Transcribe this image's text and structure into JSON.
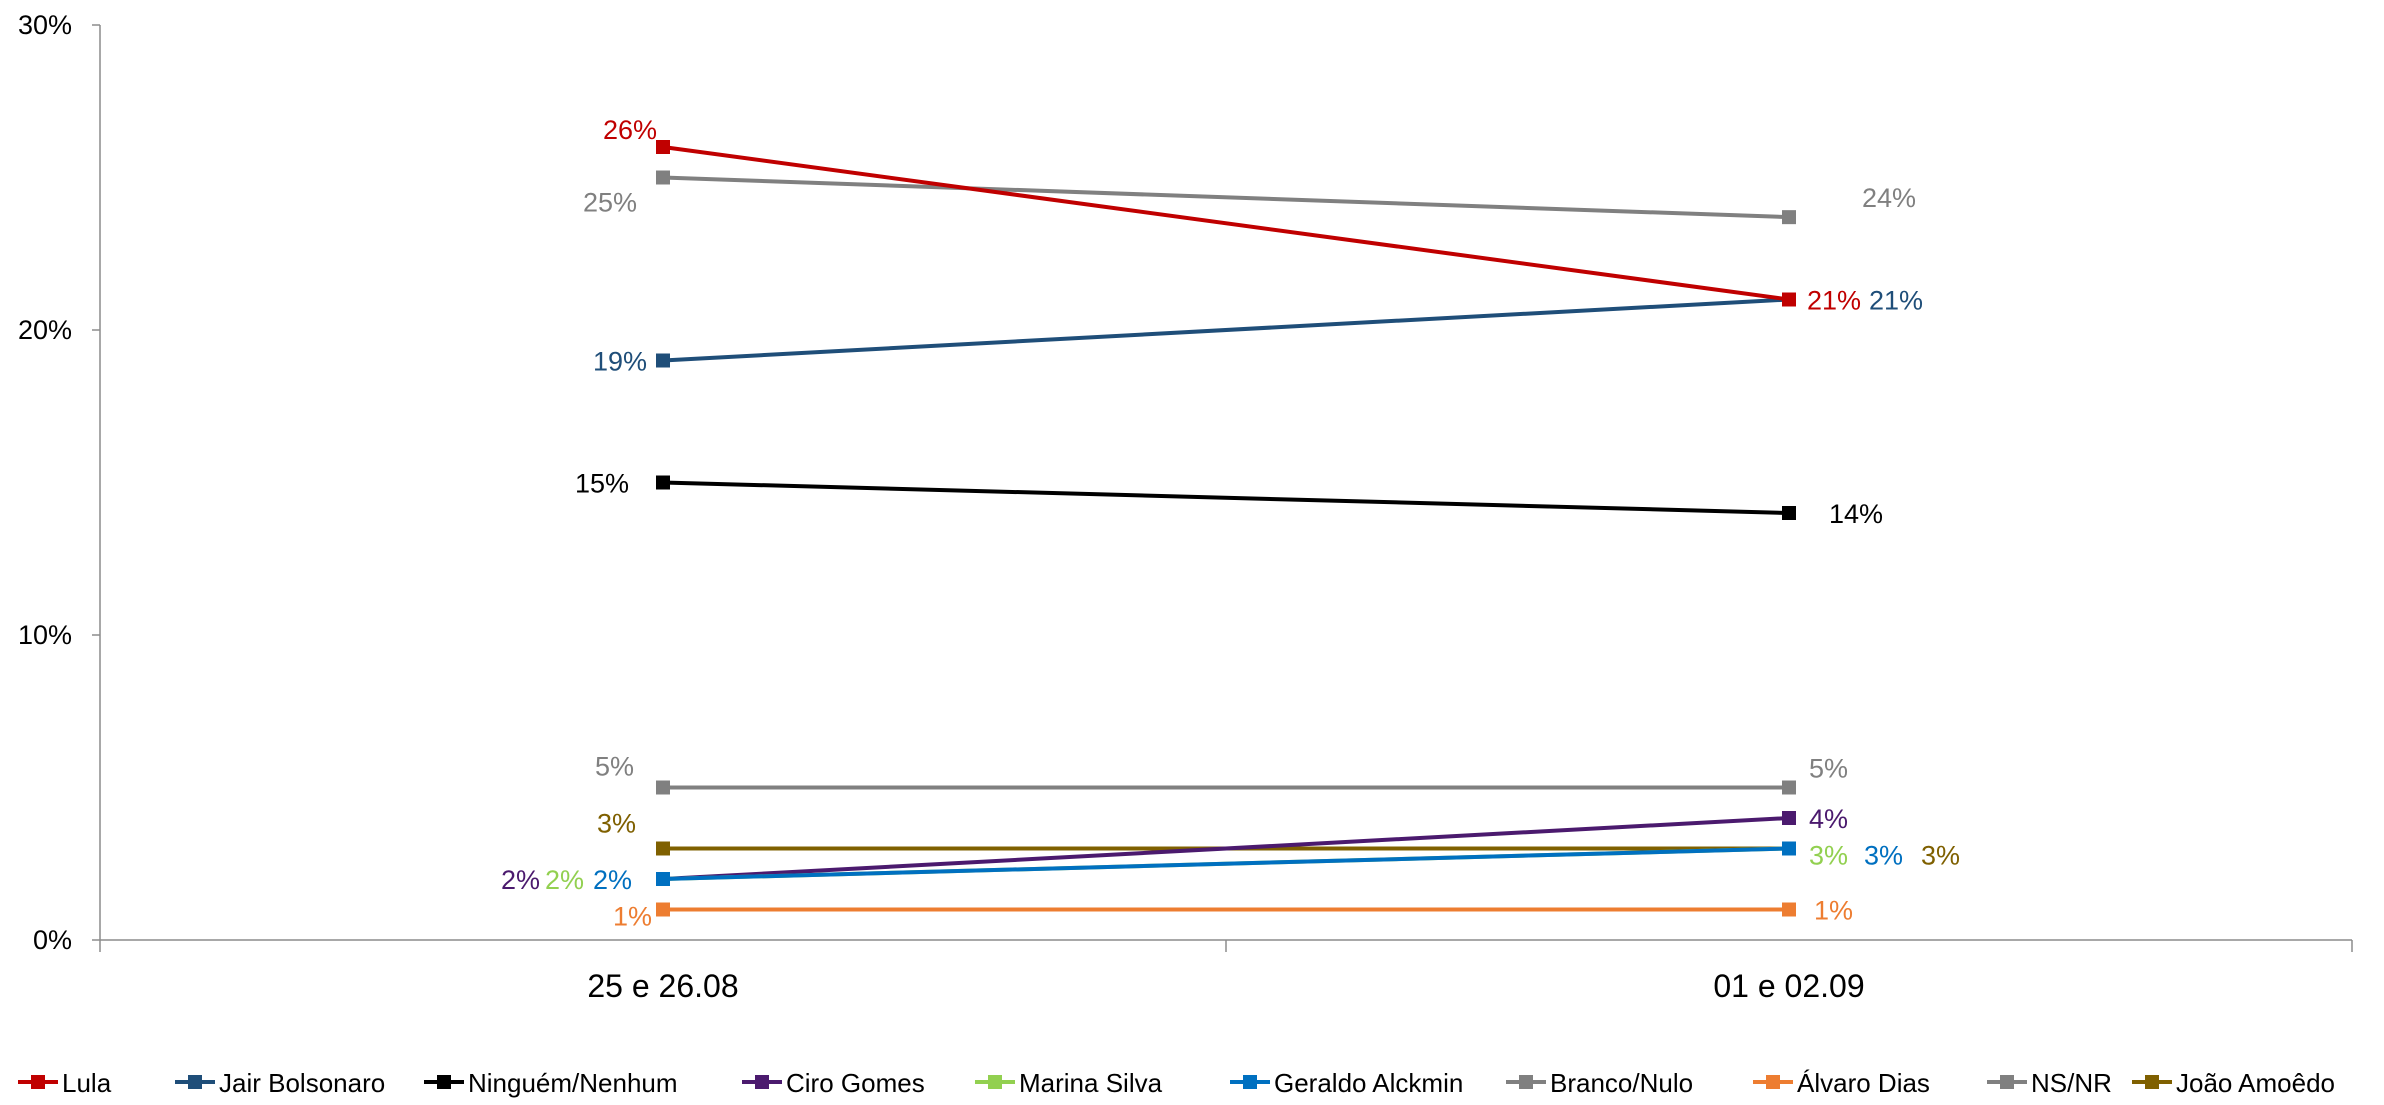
{
  "chart_data": {
    "type": "line",
    "title": "",
    "xlabel": "",
    "ylabel": "",
    "categories": [
      "25 e 26.08",
      "01 e 02.09"
    ],
    "ylim": [
      0,
      30
    ],
    "yticks": [
      0,
      10,
      20,
      30
    ],
    "ytick_labels": [
      "0%",
      "10%",
      "20%",
      "30%"
    ],
    "grid": false,
    "legend_position": "bottom",
    "series": [
      {
        "name": "Lula",
        "values": [
          26,
          21
        ],
        "labels": [
          "26%",
          "21%"
        ],
        "color": "#C00000"
      },
      {
        "name": "Jair Bolsonaro",
        "values": [
          19,
          21
        ],
        "labels": [
          "19%",
          "21%"
        ],
        "color": "#1F4E79"
      },
      {
        "name": "Ninguém/Nenhum",
        "values": [
          15,
          14
        ],
        "labels": [
          "15%",
          "14%"
        ],
        "color": "#000000"
      },
      {
        "name": "Ciro Gomes",
        "values": [
          2,
          4
        ],
        "labels": [
          "2%",
          "4%"
        ],
        "color": "#4B1A6E"
      },
      {
        "name": "Marina Silva",
        "values": [
          2,
          3
        ],
        "labels": [
          "2%",
          "3%"
        ],
        "color": "#92D050"
      },
      {
        "name": "Geraldo Alckmin",
        "values": [
          2,
          3
        ],
        "labels": [
          "2%",
          "3%"
        ],
        "color": "#0070C0"
      },
      {
        "name": "Branco/Nulo",
        "values": [
          25,
          23.7
        ],
        "labels": [
          "25%",
          "24%"
        ],
        "color": "#808080"
      },
      {
        "name": "Álvaro Dias",
        "values": [
          1,
          1
        ],
        "labels": [
          "1%",
          "1%"
        ],
        "color": "#ED7D31"
      },
      {
        "name": "NS/NR",
        "values": [
          5,
          5
        ],
        "labels": [
          "5%",
          "5%"
        ],
        "color": "#808080"
      },
      {
        "name": "João Amoêdo",
        "values": [
          3,
          3
        ],
        "labels": [
          "3%",
          "3%"
        ],
        "color": "#7F6000"
      }
    ]
  }
}
